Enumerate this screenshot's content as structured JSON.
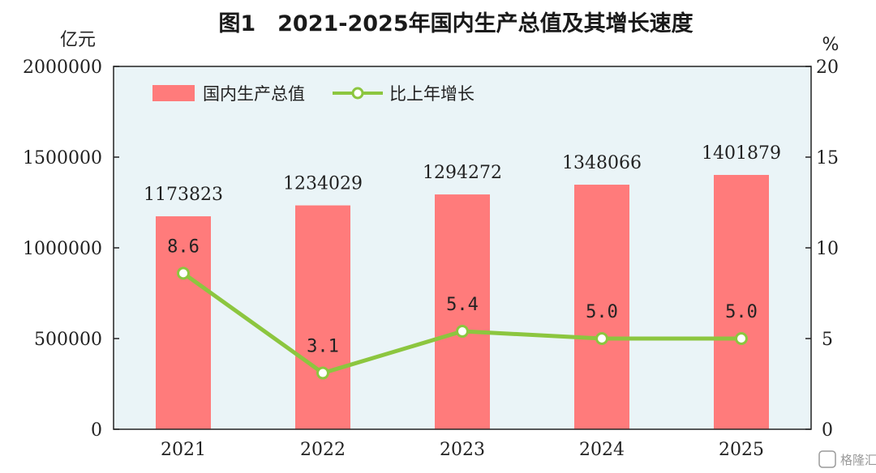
{
  "chart_data": {
    "type": "bar",
    "title": "图1　2021-2025年国内生产总值及其增长速度",
    "categories": [
      "2021",
      "2022",
      "2023",
      "2024",
      "2025"
    ],
    "series": [
      {
        "name": "国内生产总值",
        "type": "bar",
        "axis": "left",
        "values": [
          1173823,
          1234029,
          1294272,
          1348066,
          1401879
        ]
      },
      {
        "name": "比上年增长",
        "type": "line",
        "axis": "right",
        "values": [
          8.6,
          3.1,
          5.4,
          5.0,
          5.0
        ],
        "labels": [
          "8.6",
          "3.1",
          "5.4",
          "5.0",
          "5.0"
        ]
      }
    ],
    "y_left": {
      "unit": "亿元",
      "lim": [
        0,
        2000000
      ],
      "ticks": [
        "0",
        "500000",
        "1000000",
        "1500000",
        "2000000"
      ]
    },
    "y_right": {
      "unit": "%",
      "lim": [
        0,
        20
      ],
      "ticks": [
        "0",
        "5",
        "10",
        "15",
        "20"
      ]
    },
    "grid": false,
    "legend": "top-left",
    "colors": {
      "bar": "#ff7b7b",
      "line": "#8cc63f",
      "plot_bg": "#eaf4f7",
      "axis": "#222222"
    }
  },
  "watermark": {
    "text": "格隆汇"
  }
}
